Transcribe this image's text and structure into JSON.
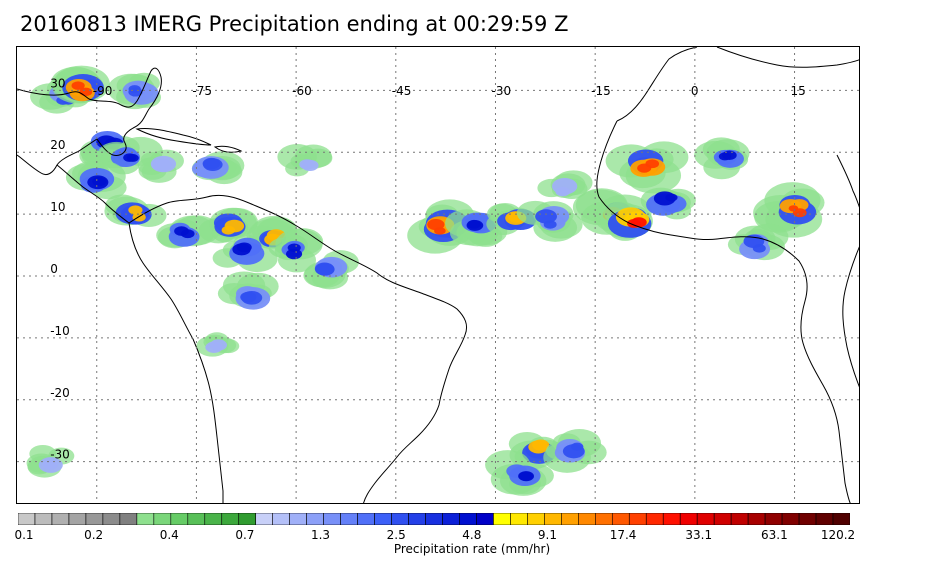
{
  "title": "20160813 IMERG Precipitation ending at 00:29:59 Z",
  "map": {
    "projection": "equirectangular",
    "lon_range": [
      -100,
      20
    ],
    "lat_range": [
      -35,
      35
    ],
    "lon_ticks": [
      "-90",
      "-75",
      "-60",
      "-45",
      "-30",
      "-15",
      "0",
      "15"
    ],
    "lat_ticks": [
      "30",
      "20",
      "10",
      "0",
      "-10",
      "-20",
      "-30"
    ],
    "gridlines": "dotted",
    "coastline_color": "#000000"
  },
  "colorbar": {
    "title": "Precipitation rate (mm/hr)",
    "tick_labels": [
      "0.1",
      "0.2",
      "0.4",
      "0.7",
      "1.3",
      "2.5",
      "4.8",
      "9.1",
      "17.4",
      "33.1",
      "63.1",
      "120.2"
    ],
    "colors": [
      "#c8c8c8",
      "#bcbcbc",
      "#b0b0b0",
      "#a4a4a4",
      "#989898",
      "#8c8c8c",
      "#808080",
      "#8ee08e",
      "#7ad67a",
      "#66cc66",
      "#58c058",
      "#4ab44a",
      "#3ca83c",
      "#309c30",
      "#c8d0f8",
      "#b4c0f8",
      "#a0b0f8",
      "#8ca0f8",
      "#7890f8",
      "#6480f8",
      "#5070f8",
      "#3c60f8",
      "#3050f0",
      "#2440e8",
      "#1830e0",
      "#0c20d8",
      "#0010d0",
      "#0000c8",
      "#ffff00",
      "#ffe800",
      "#ffd000",
      "#ffb800",
      "#ffa000",
      "#ff8800",
      "#ff7000",
      "#ff5800",
      "#ff4000",
      "#ff2800",
      "#ff1000",
      "#f00000",
      "#e00000",
      "#d00000",
      "#c00000",
      "#a80000",
      "#900000",
      "#800000",
      "#700000",
      "#600000",
      "#500000"
    ]
  },
  "precip_clusters": [
    {
      "lon": -95,
      "lat": 29,
      "rate": 2.5
    },
    {
      "lon": -92,
      "lat": 30,
      "rate": 17.4
    },
    {
      "lon": -84,
      "lat": 30,
      "rate": 2.5
    },
    {
      "lon": -88,
      "lat": 21,
      "rate": 4.8
    },
    {
      "lon": -85,
      "lat": 19,
      "rate": 4.8
    },
    {
      "lon": -80,
      "lat": 18,
      "rate": 1.3
    },
    {
      "lon": -73,
      "lat": 18,
      "rate": 2.5
    },
    {
      "lon": -90,
      "lat": 15,
      "rate": 4.8
    },
    {
      "lon": -84,
      "lat": 10,
      "rate": 9.1
    },
    {
      "lon": -77,
      "lat": 7,
      "rate": 4.8
    },
    {
      "lon": -70,
      "lat": 8,
      "rate": 9.1
    },
    {
      "lon": -63,
      "lat": 6,
      "rate": 9.1
    },
    {
      "lon": -68,
      "lat": 4,
      "rate": 4.8
    },
    {
      "lon": -60,
      "lat": 4,
      "rate": 4.8
    },
    {
      "lon": -55,
      "lat": 1,
      "rate": 2.5
    },
    {
      "lon": -67,
      "lat": -3,
      "rate": 2.5
    },
    {
      "lon": -72,
      "lat": -11,
      "rate": 1.3
    },
    {
      "lon": -58,
      "lat": 18,
      "rate": 1.3
    },
    {
      "lon": -38,
      "lat": 8,
      "rate": 17.4
    },
    {
      "lon": -33,
      "lat": 8,
      "rate": 4.8
    },
    {
      "lon": -27,
      "lat": 9,
      "rate": 9.1
    },
    {
      "lon": -22,
      "lat": 9,
      "rate": 2.5
    },
    {
      "lon": -12,
      "lat": 10,
      "rate": 17.4
    },
    {
      "lon": -9,
      "lat": 9,
      "rate": 33.1
    },
    {
      "lon": -7,
      "lat": 18,
      "rate": 17.4
    },
    {
      "lon": -4,
      "lat": 12,
      "rate": 4.8
    },
    {
      "lon": 5,
      "lat": 19,
      "rate": 4.8
    },
    {
      "lon": 15,
      "lat": 11,
      "rate": 17.4
    },
    {
      "lon": 9,
      "lat": 5,
      "rate": 2.5
    },
    {
      "lon": -24,
      "lat": -28,
      "rate": 9.1
    },
    {
      "lon": -18,
      "lat": -28,
      "rate": 2.5
    },
    {
      "lon": -26,
      "lat": -32,
      "rate": 4.8
    },
    {
      "lon": -20,
      "lat": 14,
      "rate": 1.3
    },
    {
      "lon": -97,
      "lat": -30,
      "rate": 1.3
    }
  ]
}
